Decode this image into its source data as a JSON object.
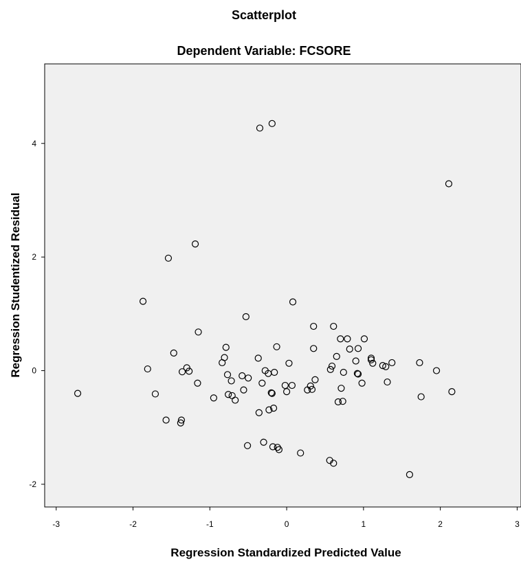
{
  "chart_data": {
    "type": "scatter",
    "title": "Scatterplot",
    "subtitle": "Dependent Variable: FCSORE",
    "xlabel": "Regression Standardized Predicted Value",
    "ylabel": "Regression Studentized Residual",
    "xlim": [
      -3.15,
      3.05
    ],
    "ylim": [
      -2.4,
      5.4
    ],
    "xticks": [
      -3,
      -2,
      -1,
      0,
      1,
      2,
      3
    ],
    "yticks": [
      -2,
      0,
      2,
      4
    ],
    "grid": false,
    "background": "#f0f0f0",
    "marker_color": "#000000",
    "points": [
      [
        -2.72,
        -0.4
      ],
      [
        -1.87,
        1.22
      ],
      [
        -1.81,
        0.03
      ],
      [
        -1.71,
        -0.41
      ],
      [
        -1.57,
        -0.87
      ],
      [
        -1.54,
        1.98
      ],
      [
        -1.47,
        0.31
      ],
      [
        -1.38,
        -0.92
      ],
      [
        -1.37,
        -0.87
      ],
      [
        -1.36,
        -0.02
      ],
      [
        -1.3,
        0.05
      ],
      [
        -1.27,
        -0.01
      ],
      [
        -1.19,
        2.23
      ],
      [
        -1.16,
        -0.22
      ],
      [
        -1.15,
        0.68
      ],
      [
        -0.95,
        -0.48
      ],
      [
        -0.84,
        0.14
      ],
      [
        -0.81,
        0.23
      ],
      [
        -0.79,
        0.41
      ],
      [
        -0.77,
        -0.07
      ],
      [
        -0.76,
        -0.42
      ],
      [
        -0.72,
        -0.18
      ],
      [
        -0.71,
        -0.44
      ],
      [
        -0.67,
        -0.52
      ],
      [
        -0.58,
        -0.09
      ],
      [
        -0.56,
        -0.34
      ],
      [
        -0.53,
        0.95
      ],
      [
        -0.51,
        -1.32
      ],
      [
        -0.5,
        -0.13
      ],
      [
        -0.37,
        0.22
      ],
      [
        -0.36,
        -0.74
      ],
      [
        -0.35,
        4.27
      ],
      [
        -0.32,
        -0.22
      ],
      [
        -0.3,
        -1.26
      ],
      [
        -0.28,
        0.0
      ],
      [
        -0.24,
        -0.05
      ],
      [
        -0.23,
        -0.69
      ],
      [
        -0.2,
        -0.39
      ],
      [
        -0.19,
        -0.4
      ],
      [
        -0.19,
        4.35
      ],
      [
        -0.18,
        -1.34
      ],
      [
        -0.17,
        -0.66
      ],
      [
        -0.16,
        -0.03
      ],
      [
        -0.13,
        0.42
      ],
      [
        -0.12,
        -1.35
      ],
      [
        -0.1,
        -1.39
      ],
      [
        -0.02,
        -0.26
      ],
      [
        0.0,
        -0.37
      ],
      [
        0.03,
        0.13
      ],
      [
        0.07,
        -0.26
      ],
      [
        0.08,
        1.21
      ],
      [
        0.18,
        -1.45
      ],
      [
        0.27,
        -0.34
      ],
      [
        0.31,
        -0.27
      ],
      [
        0.33,
        -0.33
      ],
      [
        0.35,
        0.78
      ],
      [
        0.35,
        0.39
      ],
      [
        0.37,
        -0.16
      ],
      [
        0.56,
        -1.58
      ],
      [
        0.57,
        0.02
      ],
      [
        0.59,
        0.08
      ],
      [
        0.61,
        0.78
      ],
      [
        0.61,
        -1.63
      ],
      [
        0.65,
        0.25
      ],
      [
        0.67,
        -0.55
      ],
      [
        0.7,
        0.56
      ],
      [
        0.71,
        -0.31
      ],
      [
        0.73,
        -0.54
      ],
      [
        0.74,
        -0.03
      ],
      [
        0.79,
        0.56
      ],
      [
        0.82,
        0.38
      ],
      [
        0.9,
        0.17
      ],
      [
        0.92,
        -0.05
      ],
      [
        0.93,
        0.39
      ],
      [
        0.93,
        -0.06
      ],
      [
        0.98,
        -0.22
      ],
      [
        1.01,
        0.56
      ],
      [
        1.1,
        0.19
      ],
      [
        1.1,
        0.22
      ],
      [
        1.12,
        0.13
      ],
      [
        1.25,
        0.09
      ],
      [
        1.29,
        0.07
      ],
      [
        1.31,
        -0.2
      ],
      [
        1.37,
        0.14
      ],
      [
        1.6,
        -1.83
      ],
      [
        1.73,
        0.14
      ],
      [
        1.75,
        -0.46
      ],
      [
        1.95,
        0.0
      ],
      [
        2.11,
        3.29
      ],
      [
        2.15,
        -0.37
      ]
    ]
  }
}
